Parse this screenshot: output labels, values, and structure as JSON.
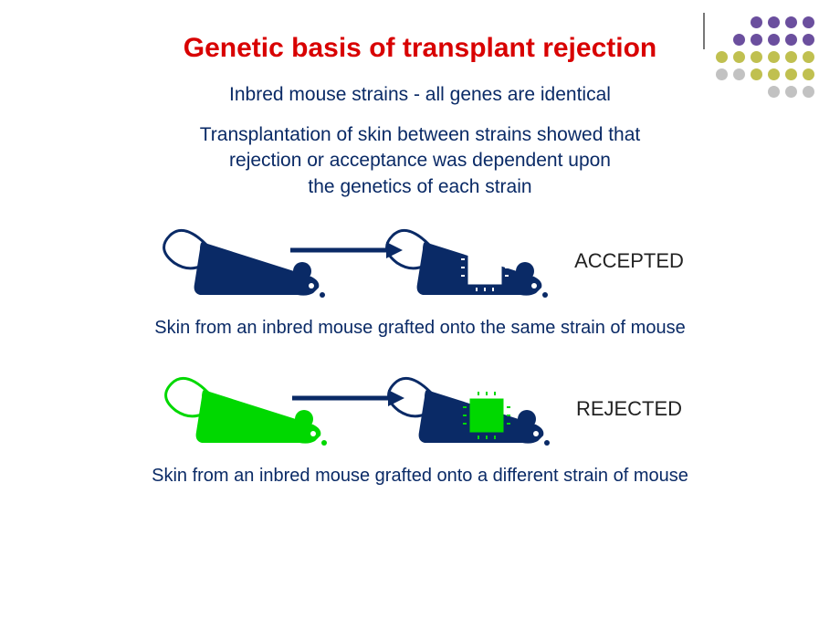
{
  "colors": {
    "title": "#d80000",
    "body_text": "#0a2a66",
    "label_text": "#222222",
    "mouse_dark": "#0a2a66",
    "mouse_green": "#00d800",
    "arrow": "#0a2a66",
    "graft_same": "#ffffff",
    "graft_diff": "#00d800",
    "bg": "#ffffff",
    "dot_purple": "#6b4f9e",
    "dot_olive": "#c0c050",
    "dot_grey": "#c2c2c2"
  },
  "title": "Genetic basis of transplant rejection",
  "subtitle": "Inbred mouse strains - all genes are identical",
  "para_lines": [
    "Transplantation of skin between strains showed that",
    "rejection or acceptance was dependent upon",
    "the genetics of each strain"
  ],
  "row1": {
    "donor_color_key": "mouse_dark",
    "recipient_color_key": "mouse_dark",
    "graft_color_key": "graft_same",
    "label": "ACCEPTED",
    "caption": "Skin from an inbred mouse grafted onto the same strain of mouse"
  },
  "row2": {
    "donor_color_key": "mouse_green",
    "recipient_color_key": "mouse_dark",
    "graft_color_key": "graft_diff",
    "label": "REJECTED",
    "caption": "Skin from an inbred mouse grafted onto a different strain of mouse"
  },
  "decoration_rows": [
    [
      "dot_purple",
      "dot_purple",
      "dot_purple",
      "dot_purple"
    ],
    [
      "dot_purple",
      "dot_purple",
      "dot_purple",
      "dot_purple",
      "dot_purple"
    ],
    [
      "dot_olive",
      "dot_olive",
      "dot_olive",
      "dot_olive",
      "dot_olive",
      "dot_olive"
    ],
    [
      "dot_grey",
      "dot_grey",
      "dot_olive",
      "dot_olive",
      "dot_olive",
      "dot_olive"
    ],
    [
      "dot_grey",
      "dot_grey",
      "dot_grey"
    ]
  ],
  "fontsize": {
    "title": 30,
    "subtitle": 21,
    "para": 21,
    "label": 22,
    "caption": 20
  },
  "mouse_svg": {
    "width": 190,
    "height": 100
  },
  "arrow_svg": {
    "width": 130,
    "height": 30
  }
}
